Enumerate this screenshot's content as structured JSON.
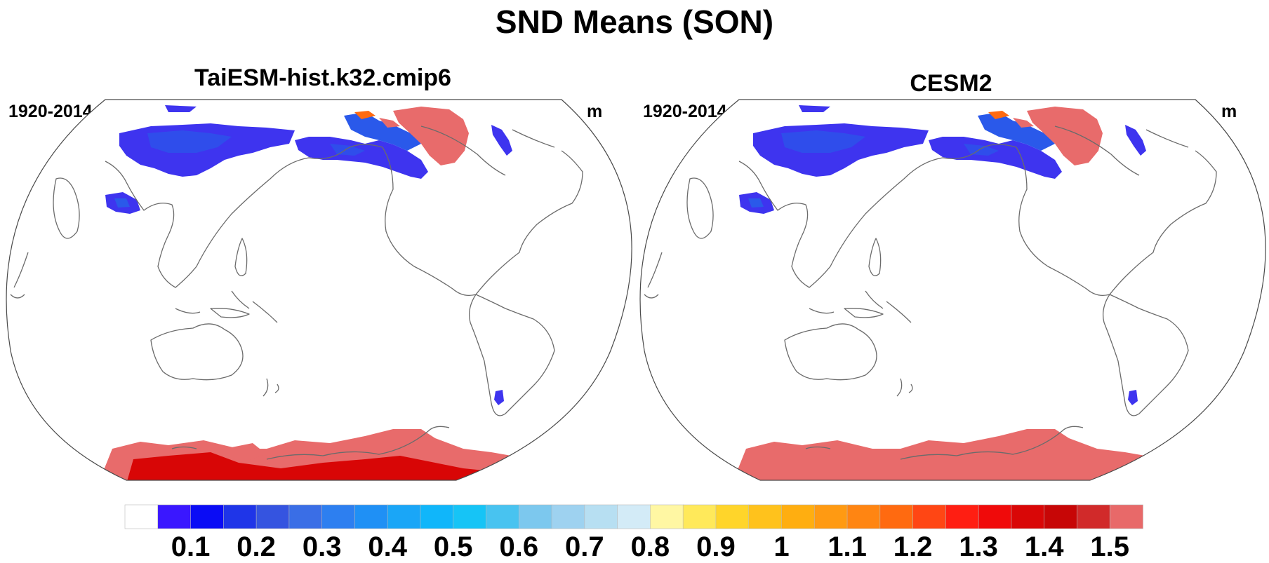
{
  "title": "SND Means (SON)",
  "panels": [
    {
      "title": "TaiESM-hist.k32.cmip6",
      "period": "1920-2014",
      "units": "m"
    },
    {
      "title": "CESM2",
      "period": "1920-2014",
      "units": "m"
    }
  ],
  "colorbar": {
    "labels": [
      "0.1",
      "0.2",
      "0.3",
      "0.4",
      "0.5",
      "0.6",
      "0.7",
      "0.8",
      "0.9",
      "1",
      "1.1",
      "1.2",
      "1.3",
      "1.4",
      "1.5"
    ],
    "colors": [
      "#ffffff",
      "#3a17ff",
      "#0a0cf5",
      "#1f35e8",
      "#3554e0",
      "#3a6ee6",
      "#2d7ff0",
      "#1f90f5",
      "#1aa6f7",
      "#10b6fa",
      "#16c4f6",
      "#48c3f0",
      "#7cc8ee",
      "#9ed2f0",
      "#b7dff2",
      "#d3ebf7",
      "#fff7a3",
      "#ffe95a",
      "#ffd52a",
      "#ffc21c",
      "#ffae10",
      "#ff9a12",
      "#ff8512",
      "#ff6a10",
      "#ff4614",
      "#ff1e12",
      "#f00a0a",
      "#d90707",
      "#c70606",
      "#d12a2a",
      "#e86969"
    ]
  },
  "colors": {
    "land_outline": "#6b6b6b",
    "snow_light": "#3e34ef",
    "snow_mid": "#2a59ea",
    "snow_deep": "#e86b6b",
    "snow_max": "#d80606"
  }
}
